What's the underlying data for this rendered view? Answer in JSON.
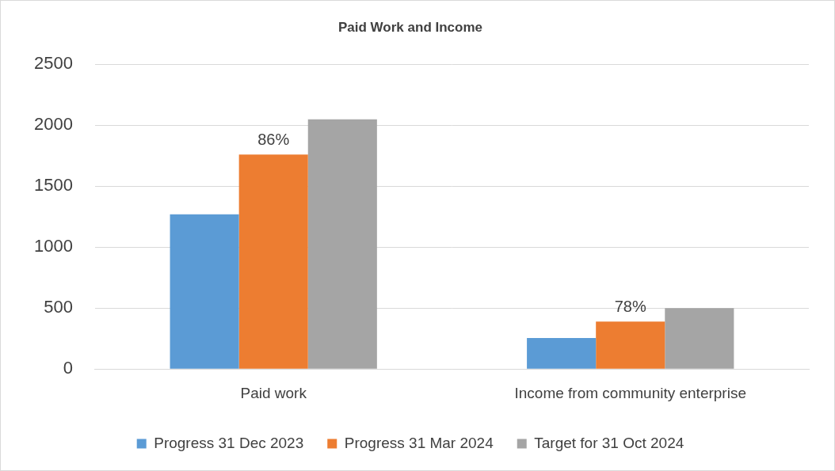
{
  "chart_data": {
    "type": "bar",
    "title": "Paid Work and Income",
    "categories": [
      "Paid work",
      "Income from community enterprise"
    ],
    "series": [
      {
        "name": "Progress 31 Dec 2023",
        "color": "#5b9bd5",
        "values": [
          1270,
          255
        ]
      },
      {
        "name": "Progress 31 Mar 2024",
        "color": "#ed7d31",
        "values": [
          1760,
          390
        ]
      },
      {
        "name": "Target for 31 Oct 2024",
        "color": "#a5a5a5",
        "values": [
          2050,
          500
        ]
      }
    ],
    "annotations": [
      {
        "text": "86%",
        "category": "Paid work",
        "series": "Progress 31 Mar 2024"
      },
      {
        "text": "78%",
        "category": "Income from community enterprise",
        "series": "Progress 31 Mar 2024"
      }
    ],
    "ylim": [
      0,
      2500
    ],
    "yticks": [
      0,
      500,
      1000,
      1500,
      2000,
      2500
    ],
    "grid": true,
    "legend": "bottom"
  }
}
